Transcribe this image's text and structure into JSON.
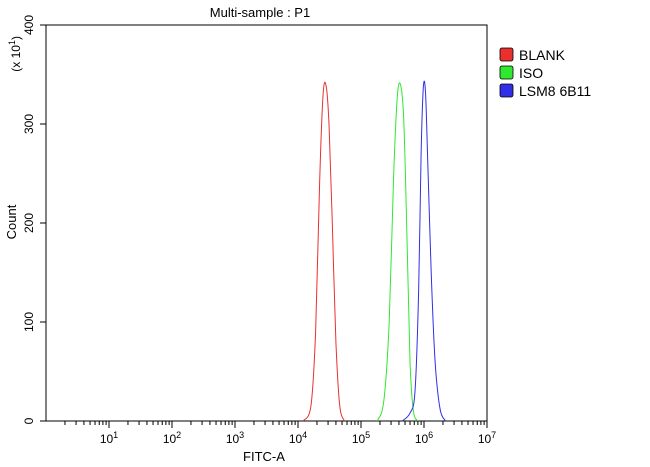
{
  "chart_data": {
    "type": "line",
    "title": "Multi-sample : P1",
    "xlabel": "FITC-A",
    "ylabel": "Count",
    "y_multiplier_base": "x 10",
    "y_multiplier_exp": "1",
    "x_scale": "log",
    "xlim": [
      1,
      10000000
    ],
    "ylim": [
      0,
      400
    ],
    "x_ticks": [
      {
        "value": 10,
        "base": "10",
        "exp": "1"
      },
      {
        "value": 100,
        "base": "10",
        "exp": "2"
      },
      {
        "value": 1000,
        "base": "10",
        "exp": "3"
      },
      {
        "value": 10000,
        "base": "10",
        "exp": "4"
      },
      {
        "value": 100000,
        "base": "10",
        "exp": "5"
      },
      {
        "value": 1000000,
        "base": "10",
        "exp": "6"
      },
      {
        "value": 10000000,
        "base": "10",
        "exp": "7"
      }
    ],
    "y_ticks": [
      "0",
      "100",
      "200",
      "300",
      "400"
    ],
    "grid": false,
    "legend_position": "top-right",
    "series": [
      {
        "name": "BLANK",
        "color": "#e8312f",
        "x": [
          12000,
          16000,
          19000,
          22000,
          25000,
          28000,
          31000,
          35000,
          40000,
          46000,
          55000
        ],
        "y": [
          0,
          15,
          90,
          240,
          330,
          338,
          300,
          200,
          80,
          15,
          0
        ]
      },
      {
        "name": "ISO",
        "color": "#2fe82f",
        "x": [
          180000,
          230000,
          280000,
          330000,
          380000,
          430000,
          480000,
          540000,
          600000,
          680000,
          800000
        ],
        "y": [
          0,
          20,
          100,
          250,
          330,
          338,
          300,
          180,
          60,
          10,
          0
        ]
      },
      {
        "name": "LSM8 6B11",
        "color": "#2f2fe8",
        "x": [
          450000,
          600000,
          720000,
          820000,
          900000,
          980000,
          1060000,
          1150000,
          1300000,
          1500000,
          1800000,
          2200000
        ],
        "y": [
          0,
          8,
          30,
          130,
          270,
          338,
          330,
          260,
          150,
          60,
          12,
          0
        ]
      }
    ]
  }
}
